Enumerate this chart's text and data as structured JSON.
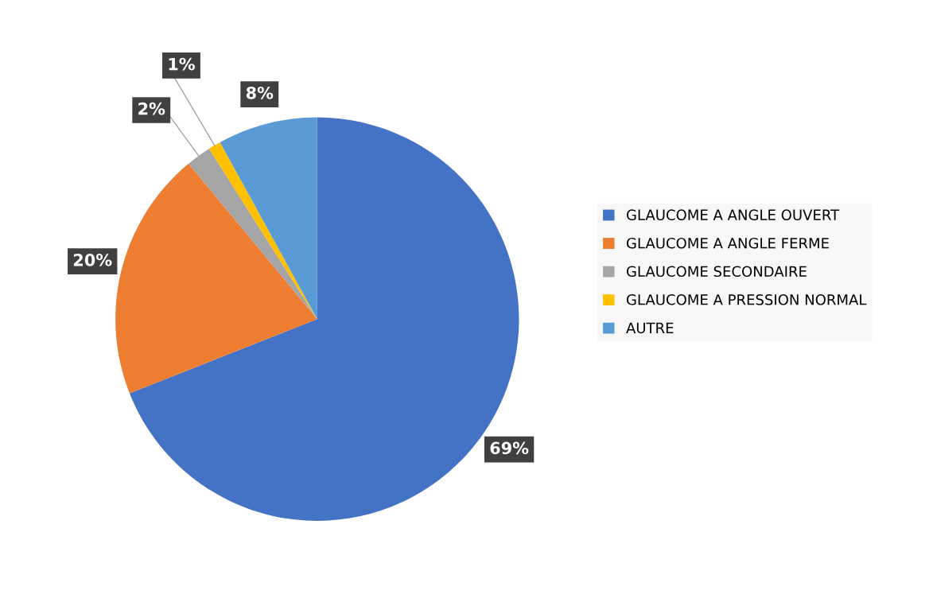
{
  "chart_data": {
    "type": "pie",
    "categories": [
      "GLAUCOME A ANGLE OUVERT",
      "GLAUCOME A ANGLE FERME",
      "GLAUCOME SECONDAIRE",
      "GLAUCOME A PRESSION NORMAL",
      "AUTRE"
    ],
    "values": [
      69,
      20,
      2,
      1,
      8
    ],
    "value_labels": [
      "69%",
      "20%",
      "2%",
      "1%",
      "8%"
    ],
    "colors": [
      "#4472c4",
      "#ed7d31",
      "#a5a5a5",
      "#ffc000",
      "#5b9bd5"
    ],
    "legend": "right"
  }
}
